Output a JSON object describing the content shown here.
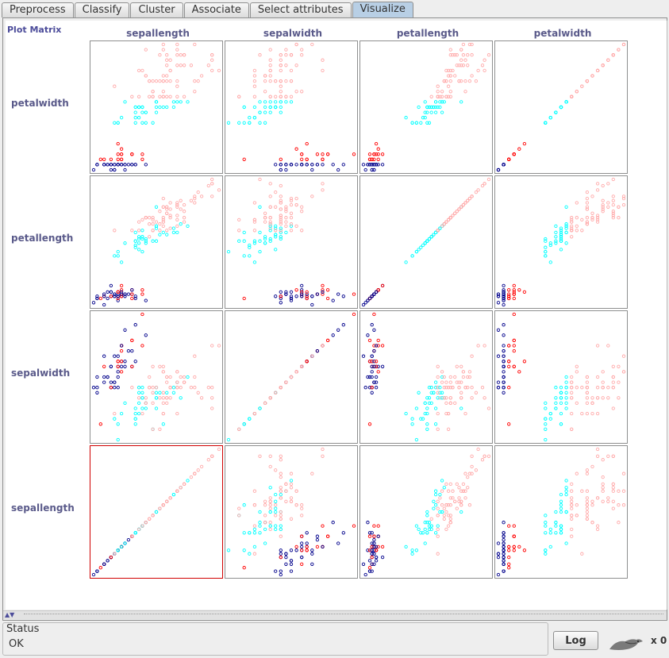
{
  "tabs": [
    {
      "label": "Preprocess",
      "active": false
    },
    {
      "label": "Classify",
      "active": false
    },
    {
      "label": "Cluster",
      "active": false
    },
    {
      "label": "Associate",
      "active": false
    },
    {
      "label": "Select attributes",
      "active": false
    },
    {
      "label": "Visualize",
      "active": true
    }
  ],
  "plot_matrix": {
    "title": "Plot Matrix",
    "columns": [
      "sepallength",
      "sepalwidth",
      "petallength",
      "petalwidth"
    ],
    "rows": [
      "petalwidth",
      "petallength",
      "sepalwidth",
      "sepallength"
    ],
    "selected_cell": "sepallength-sepallength"
  },
  "chart_data": {
    "type": "scatter",
    "attributes": [
      "sepallength",
      "sepalwidth",
      "petallength",
      "petalwidth"
    ],
    "ranges": {
      "sepallength": [
        4.3,
        7.9
      ],
      "sepalwidth": [
        2.0,
        4.4
      ],
      "petallength": [
        1.0,
        6.9
      ],
      "petalwidth": [
        0.1,
        2.5
      ]
    },
    "color_key": [
      "#00008b",
      "#ff0000",
      "#00ffff",
      "#ffaaaa"
    ],
    "color_attribute_values": [
      0.1,
      0.5,
      1.0,
      1.5
    ],
    "points": [
      [
        5.1,
        3.5,
        1.4,
        0.2
      ],
      [
        4.9,
        3.0,
        1.4,
        0.2
      ],
      [
        4.7,
        3.2,
        1.3,
        0.2
      ],
      [
        4.6,
        3.1,
        1.5,
        0.2
      ],
      [
        5.0,
        3.6,
        1.4,
        0.2
      ],
      [
        5.4,
        3.9,
        1.7,
        0.4
      ],
      [
        4.6,
        3.4,
        1.4,
        0.3
      ],
      [
        5.0,
        3.4,
        1.5,
        0.2
      ],
      [
        4.4,
        2.9,
        1.4,
        0.2
      ],
      [
        4.9,
        3.1,
        1.5,
        0.1
      ],
      [
        5.4,
        3.7,
        1.5,
        0.2
      ],
      [
        4.8,
        3.4,
        1.6,
        0.2
      ],
      [
        4.8,
        3.0,
        1.4,
        0.1
      ],
      [
        4.3,
        3.0,
        1.1,
        0.1
      ],
      [
        5.8,
        4.0,
        1.2,
        0.2
      ],
      [
        5.7,
        4.4,
        1.5,
        0.4
      ],
      [
        5.4,
        3.9,
        1.3,
        0.4
      ],
      [
        5.1,
        3.5,
        1.4,
        0.3
      ],
      [
        5.7,
        3.8,
        1.7,
        0.3
      ],
      [
        5.1,
        3.8,
        1.5,
        0.3
      ],
      [
        5.4,
        3.4,
        1.7,
        0.2
      ],
      [
        5.1,
        3.7,
        1.5,
        0.4
      ],
      [
        4.6,
        3.6,
        1.0,
        0.2
      ],
      [
        5.1,
        3.3,
        1.7,
        0.5
      ],
      [
        4.8,
        3.4,
        1.9,
        0.2
      ],
      [
        5.0,
        3.0,
        1.6,
        0.2
      ],
      [
        5.0,
        3.4,
        1.6,
        0.4
      ],
      [
        5.2,
        3.5,
        1.5,
        0.2
      ],
      [
        5.2,
        3.4,
        1.4,
        0.2
      ],
      [
        4.7,
        3.2,
        1.6,
        0.2
      ],
      [
        4.8,
        3.1,
        1.6,
        0.2
      ],
      [
        5.4,
        3.4,
        1.5,
        0.4
      ],
      [
        5.2,
        4.1,
        1.5,
        0.1
      ],
      [
        5.5,
        4.2,
        1.4,
        0.2
      ],
      [
        4.9,
        3.1,
        1.5,
        0.2
      ],
      [
        5.0,
        3.2,
        1.2,
        0.2
      ],
      [
        5.5,
        3.5,
        1.3,
        0.2
      ],
      [
        4.9,
        3.6,
        1.4,
        0.1
      ],
      [
        4.4,
        3.0,
        1.3,
        0.2
      ],
      [
        5.1,
        3.4,
        1.5,
        0.2
      ],
      [
        5.0,
        3.5,
        1.3,
        0.3
      ],
      [
        4.5,
        2.3,
        1.3,
        0.3
      ],
      [
        4.4,
        3.2,
        1.3,
        0.2
      ],
      [
        5.0,
        3.5,
        1.6,
        0.6
      ],
      [
        5.1,
        3.8,
        1.9,
        0.4
      ],
      [
        4.8,
        3.0,
        1.4,
        0.3
      ],
      [
        5.1,
        3.8,
        1.6,
        0.2
      ],
      [
        4.6,
        3.2,
        1.4,
        0.2
      ],
      [
        5.3,
        3.7,
        1.5,
        0.2
      ],
      [
        5.0,
        3.3,
        1.4,
        0.2
      ],
      [
        7.0,
        3.2,
        4.7,
        1.4
      ],
      [
        6.4,
        3.2,
        4.5,
        1.5
      ],
      [
        6.9,
        3.1,
        4.9,
        1.5
      ],
      [
        5.5,
        2.3,
        4.0,
        1.3
      ],
      [
        6.5,
        2.8,
        4.6,
        1.5
      ],
      [
        5.7,
        2.8,
        4.5,
        1.3
      ],
      [
        6.3,
        3.3,
        4.7,
        1.6
      ],
      [
        4.9,
        2.4,
        3.3,
        1.0
      ],
      [
        6.6,
        2.9,
        4.6,
        1.3
      ],
      [
        5.2,
        2.7,
        3.9,
        1.4
      ],
      [
        5.0,
        2.0,
        3.5,
        1.0
      ],
      [
        5.9,
        3.0,
        4.2,
        1.5
      ],
      [
        6.0,
        2.2,
        4.0,
        1.0
      ],
      [
        6.1,
        2.9,
        4.7,
        1.4
      ],
      [
        5.6,
        2.9,
        3.6,
        1.3
      ],
      [
        6.7,
        3.1,
        4.4,
        1.4
      ],
      [
        5.6,
        3.0,
        4.5,
        1.5
      ],
      [
        5.8,
        2.7,
        4.1,
        1.0
      ],
      [
        6.2,
        2.2,
        4.5,
        1.5
      ],
      [
        5.6,
        2.5,
        3.9,
        1.1
      ],
      [
        5.9,
        3.2,
        4.8,
        1.8
      ],
      [
        6.1,
        2.8,
        4.0,
        1.3
      ],
      [
        6.3,
        2.5,
        4.9,
        1.5
      ],
      [
        6.1,
        2.8,
        4.7,
        1.2
      ],
      [
        6.4,
        2.9,
        4.3,
        1.3
      ],
      [
        6.6,
        3.0,
        4.4,
        1.4
      ],
      [
        6.8,
        2.8,
        4.8,
        1.4
      ],
      [
        6.7,
        3.0,
        5.0,
        1.7
      ],
      [
        6.0,
        2.9,
        4.5,
        1.5
      ],
      [
        5.7,
        2.6,
        3.5,
        1.0
      ],
      [
        5.5,
        2.4,
        3.8,
        1.1
      ],
      [
        5.5,
        2.4,
        3.7,
        1.0
      ],
      [
        5.8,
        2.7,
        3.9,
        1.2
      ],
      [
        6.0,
        2.7,
        5.1,
        1.6
      ],
      [
        5.4,
        3.0,
        4.5,
        1.5
      ],
      [
        6.0,
        3.4,
        4.5,
        1.6
      ],
      [
        6.7,
        3.1,
        4.7,
        1.5
      ],
      [
        6.3,
        2.3,
        4.4,
        1.3
      ],
      [
        5.6,
        3.0,
        4.1,
        1.3
      ],
      [
        5.5,
        2.5,
        4.0,
        1.3
      ],
      [
        5.5,
        2.6,
        4.4,
        1.2
      ],
      [
        6.1,
        3.0,
        4.6,
        1.4
      ],
      [
        5.8,
        2.6,
        4.0,
        1.2
      ],
      [
        5.0,
        2.3,
        3.3,
        1.0
      ],
      [
        5.6,
        2.7,
        4.2,
        1.3
      ],
      [
        5.7,
        3.0,
        4.2,
        1.2
      ],
      [
        5.7,
        2.9,
        4.2,
        1.3
      ],
      [
        6.2,
        2.9,
        4.3,
        1.3
      ],
      [
        5.1,
        2.5,
        3.0,
        1.1
      ],
      [
        5.7,
        2.8,
        4.1,
        1.3
      ],
      [
        6.3,
        3.3,
        6.0,
        2.5
      ],
      [
        5.8,
        2.7,
        5.1,
        1.9
      ],
      [
        7.1,
        3.0,
        5.9,
        2.1
      ],
      [
        6.3,
        2.9,
        5.6,
        1.8
      ],
      [
        6.5,
        3.0,
        5.8,
        2.2
      ],
      [
        7.6,
        3.0,
        6.6,
        2.1
      ],
      [
        4.9,
        2.5,
        4.5,
        1.7
      ],
      [
        7.3,
        2.9,
        6.3,
        1.8
      ],
      [
        6.7,
        2.5,
        5.8,
        1.8
      ],
      [
        7.2,
        3.6,
        6.1,
        2.5
      ],
      [
        6.5,
        3.2,
        5.1,
        2.0
      ],
      [
        6.4,
        2.7,
        5.3,
        1.9
      ],
      [
        6.8,
        3.0,
        5.5,
        2.1
      ],
      [
        5.7,
        2.5,
        5.0,
        2.0
      ],
      [
        5.8,
        2.8,
        5.1,
        2.4
      ],
      [
        6.4,
        3.2,
        5.3,
        2.3
      ],
      [
        6.5,
        3.0,
        5.5,
        1.8
      ],
      [
        7.7,
        3.8,
        6.7,
        2.2
      ],
      [
        7.7,
        2.6,
        6.9,
        2.3
      ],
      [
        6.0,
        2.2,
        5.0,
        1.5
      ],
      [
        6.9,
        3.2,
        5.7,
        2.3
      ],
      [
        5.6,
        2.8,
        4.9,
        2.0
      ],
      [
        7.7,
        2.8,
        6.7,
        2.0
      ],
      [
        6.3,
        2.7,
        4.9,
        1.8
      ],
      [
        6.7,
        3.3,
        5.7,
        2.1
      ],
      [
        7.2,
        3.2,
        6.0,
        1.8
      ],
      [
        6.2,
        2.8,
        4.8,
        1.8
      ],
      [
        6.1,
        3.0,
        4.9,
        1.8
      ],
      [
        6.4,
        2.8,
        5.6,
        2.1
      ],
      [
        7.2,
        3.0,
        5.8,
        1.6
      ],
      [
        7.4,
        2.8,
        6.1,
        1.9
      ],
      [
        7.9,
        3.8,
        6.4,
        2.0
      ],
      [
        6.4,
        2.8,
        5.6,
        2.2
      ],
      [
        6.3,
        2.8,
        5.1,
        1.5
      ],
      [
        6.1,
        2.6,
        5.6,
        1.4
      ],
      [
        7.7,
        3.0,
        6.1,
        2.3
      ],
      [
        6.3,
        3.4,
        5.6,
        2.4
      ],
      [
        6.4,
        3.1,
        5.5,
        1.8
      ],
      [
        6.0,
        3.0,
        4.8,
        1.8
      ],
      [
        6.9,
        3.1,
        5.4,
        2.1
      ],
      [
        6.7,
        3.1,
        5.6,
        2.4
      ],
      [
        6.9,
        3.1,
        5.1,
        2.3
      ],
      [
        5.8,
        2.7,
        5.1,
        1.9
      ],
      [
        6.8,
        3.2,
        5.9,
        2.3
      ],
      [
        6.7,
        3.3,
        5.7,
        2.5
      ],
      [
        6.7,
        3.0,
        5.2,
        2.3
      ],
      [
        6.3,
        2.5,
        5.0,
        1.9
      ],
      [
        6.5,
        3.0,
        5.2,
        2.0
      ],
      [
        6.2,
        3.4,
        5.4,
        2.3
      ],
      [
        5.9,
        3.0,
        5.1,
        1.8
      ]
    ]
  },
  "status": {
    "title": "Status",
    "text": "OK"
  },
  "log_button": {
    "label": "Log"
  },
  "task_count": "x 0"
}
